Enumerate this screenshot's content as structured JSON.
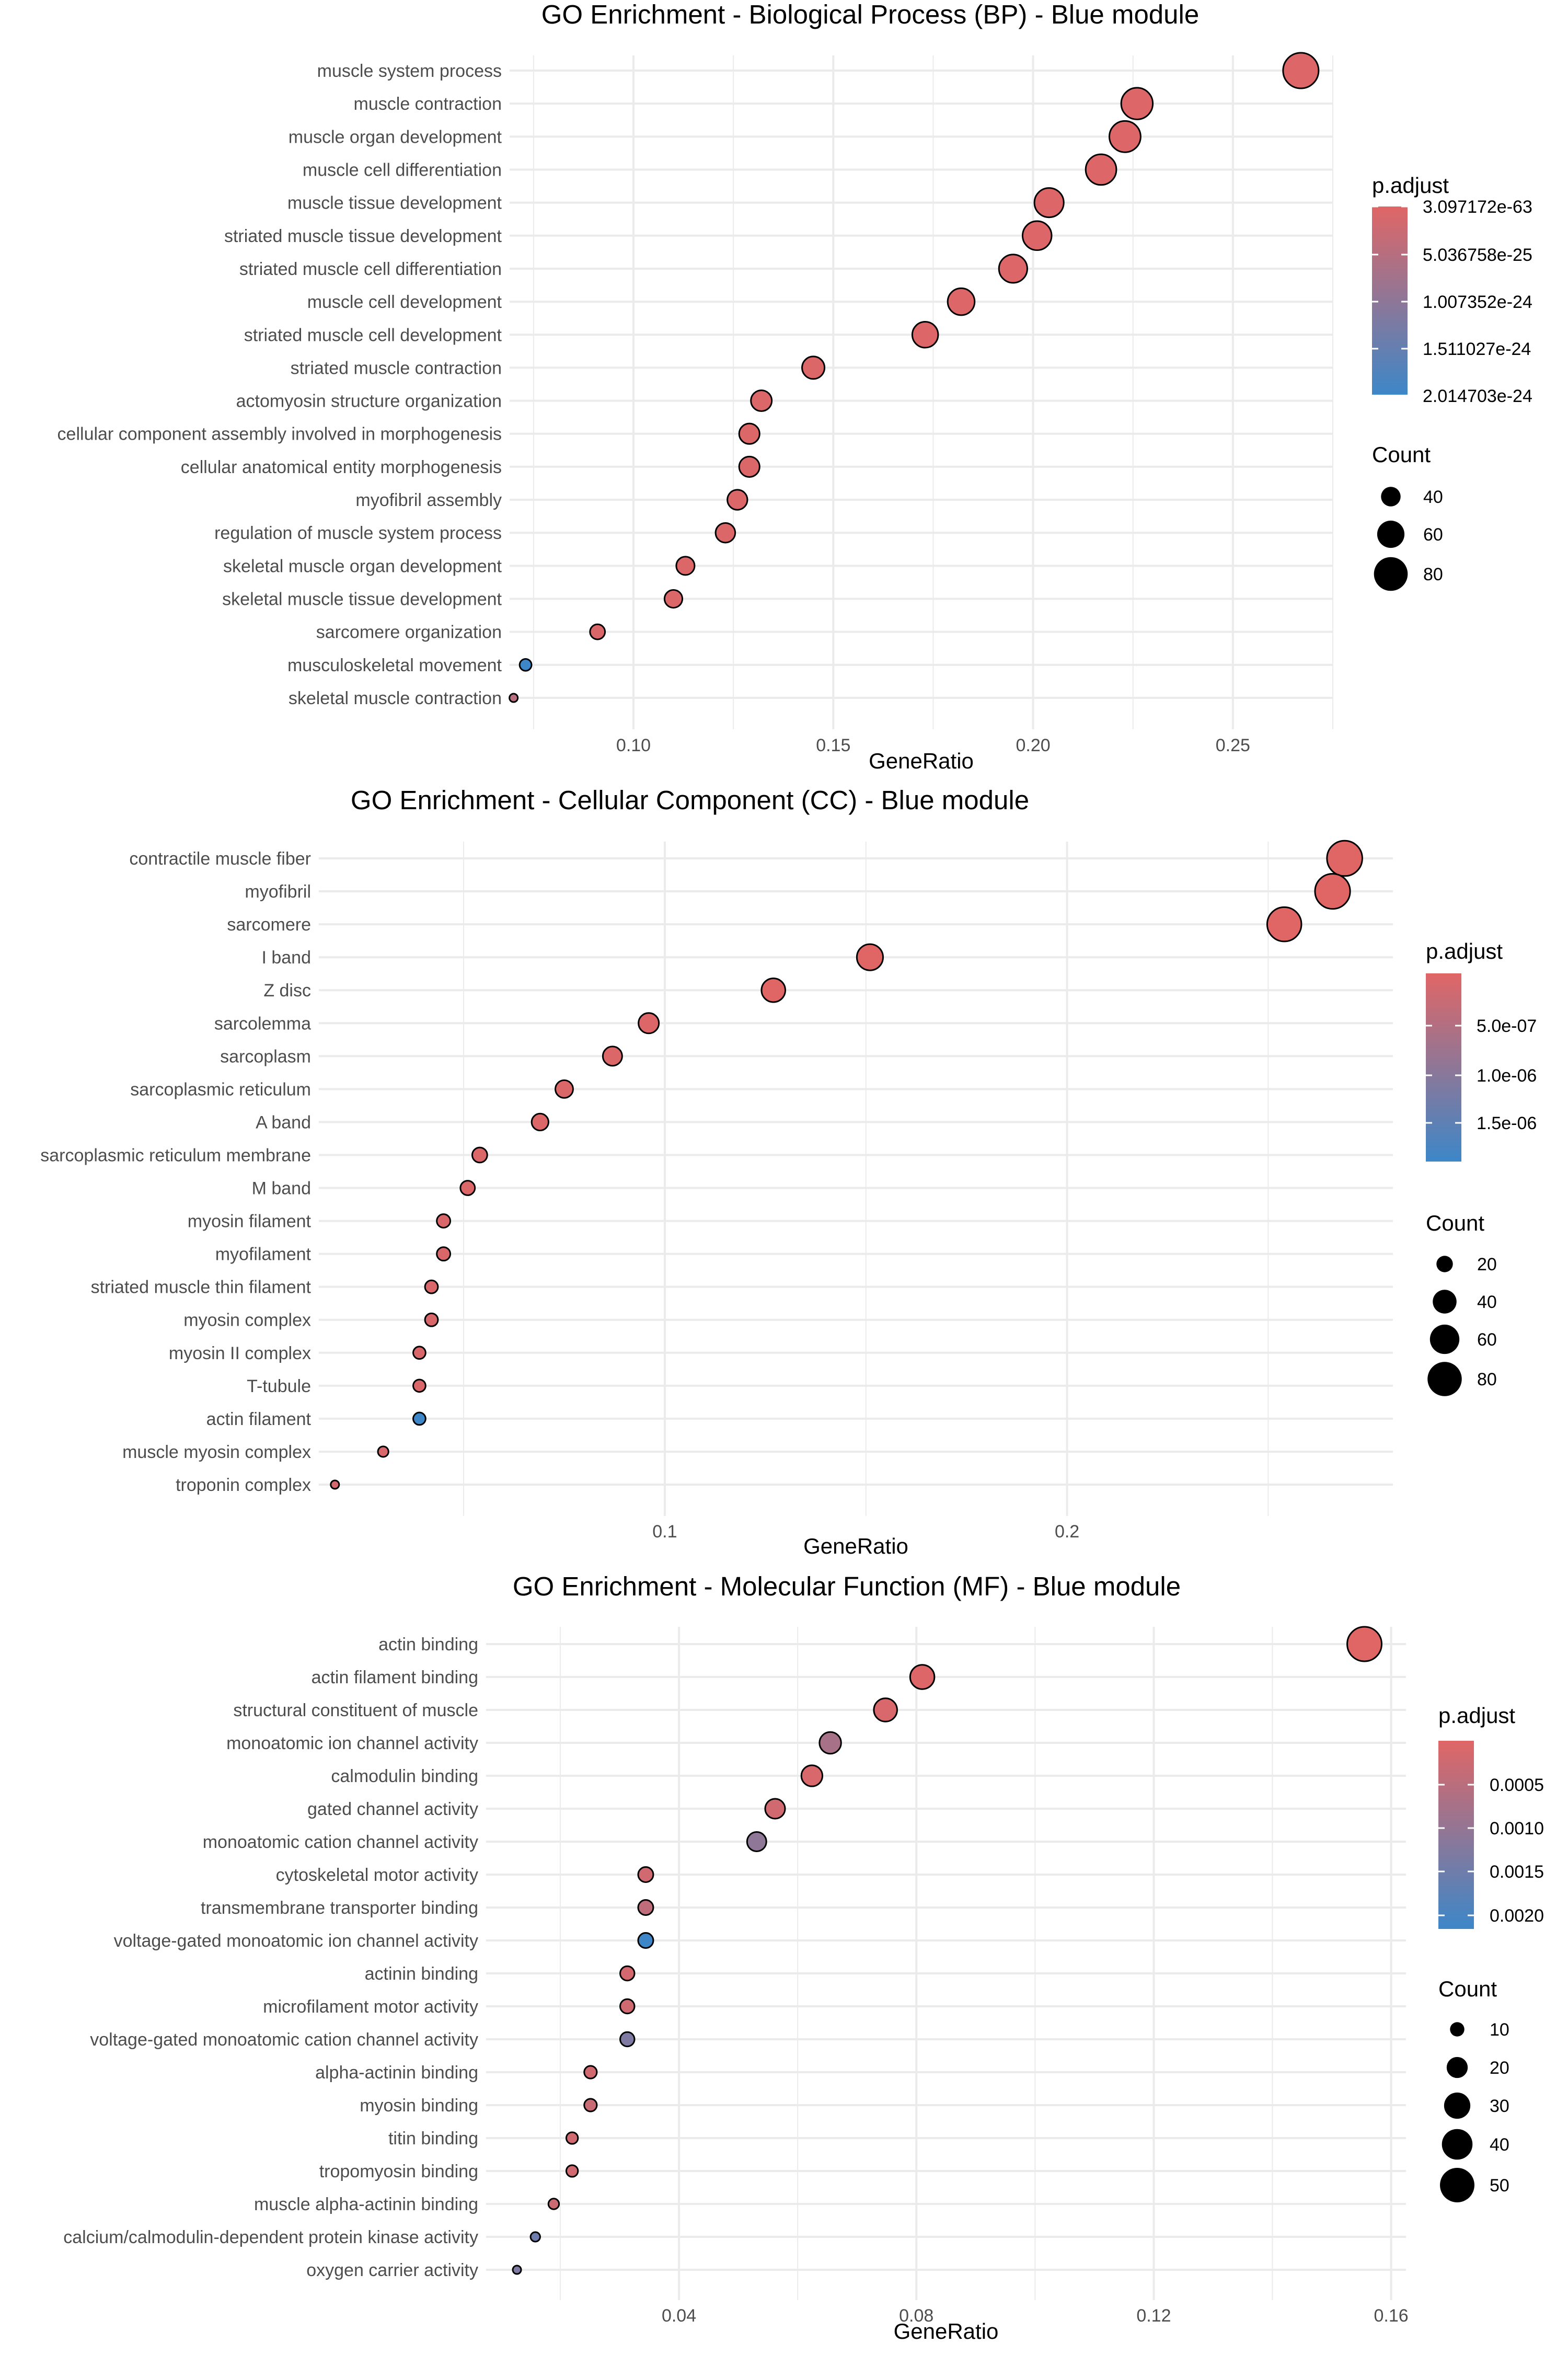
{
  "chart_data": [
    {
      "type": "scatter",
      "title": "GO Enrichment - Biological Process (BP) - Blue module",
      "xlabel": "GeneRatio",
      "ylabel": "",
      "xlim": [
        0.069,
        0.275
      ],
      "xticks": [
        0.1,
        0.15,
        0.2,
        0.25
      ],
      "xtick_labels": [
        "0.10",
        "0.15",
        "0.20",
        "0.25"
      ],
      "grid": true,
      "legend_position": "right",
      "color_legend": {
        "title": "p.adjust",
        "low_color": "#e06666",
        "high_color": "#3d87c8",
        "labels": [
          "3.097172e-63",
          "5.036758e-25",
          "1.007352e-24",
          "1.511027e-24",
          "2.014703e-24"
        ]
      },
      "size_legend": {
        "title": "Count",
        "values": [
          40,
          60,
          80
        ],
        "labels": [
          "40",
          "60",
          "80"
        ]
      },
      "count_range": [
        18,
        86
      ],
      "categories": [
        "muscle system process",
        "muscle contraction",
        "muscle organ development",
        "muscle cell differentiation",
        "muscle tissue development",
        "striated muscle tissue development",
        "striated muscle cell differentiation",
        "muscle cell development",
        "striated muscle cell development",
        "striated muscle contraction",
        "actomyosin structure organization",
        "cellular component assembly involved in morphogenesis",
        "cellular anatomical entity morphogenesis",
        "myofibril assembly",
        "regulation of muscle system process",
        "skeletal muscle organ development",
        "skeletal muscle tissue development",
        "sarcomere organization",
        "musculoskeletal movement",
        "skeletal muscle contraction"
      ],
      "x": [
        0.267,
        0.226,
        0.223,
        0.217,
        0.204,
        0.201,
        0.195,
        0.182,
        0.173,
        0.145,
        0.132,
        0.129,
        0.129,
        0.126,
        0.123,
        0.113,
        0.11,
        0.091,
        0.073,
        0.07
      ],
      "count": [
        86,
        73,
        72,
        70,
        66,
        65,
        63,
        59,
        56,
        47,
        43,
        42,
        42,
        41,
        40,
        37,
        36,
        30,
        24,
        18
      ],
      "color_level": [
        0.02,
        0.02,
        0.02,
        0.02,
        0.02,
        0.02,
        0.02,
        0.02,
        0.02,
        0.03,
        0.03,
        0.03,
        0.03,
        0.03,
        0.03,
        0.03,
        0.03,
        0.04,
        1.0,
        0.25
      ]
    },
    {
      "type": "scatter",
      "title": "GO Enrichment - Cellular Component (CC) - Blue module",
      "xlabel": "GeneRatio",
      "ylabel": "",
      "xlim": [
        0.014,
        0.281
      ],
      "xticks": [
        0.1,
        0.2
      ],
      "xtick_labels": [
        "0.1",
        "0.2"
      ],
      "grid": true,
      "legend_position": "right",
      "color_legend": {
        "title": "p.adjust",
        "low_color": "#e06666",
        "high_color": "#3d87c8",
        "labels": [
          "5.0e-07",
          "1.0e-06",
          "1.5e-06"
        ]
      },
      "size_legend": {
        "title": "Count",
        "values": [
          20,
          40,
          60,
          80
        ],
        "labels": [
          "20",
          "40",
          "60",
          "80"
        ]
      },
      "count_range": [
        6,
        86
      ],
      "categories": [
        "contractile muscle fiber",
        "myofibril",
        "sarcomere",
        "I band",
        "Z disc",
        "sarcolemma",
        "sarcoplasm",
        "sarcoplasmic reticulum",
        "A band",
        "sarcoplasmic reticulum membrane",
        "M band",
        "myosin filament",
        "myofilament",
        "striated muscle thin filament",
        "myosin complex",
        "myosin II complex",
        "T-tubule",
        "actin filament",
        "muscle myosin complex",
        "troponin complex"
      ],
      "x": [
        0.269,
        0.266,
        0.254,
        0.151,
        0.127,
        0.096,
        0.087,
        0.075,
        0.069,
        0.054,
        0.051,
        0.045,
        0.045,
        0.042,
        0.042,
        0.039,
        0.039,
        0.039,
        0.03,
        0.018
      ],
      "count": [
        85,
        84,
        80,
        48,
        40,
        30,
        27,
        23,
        21,
        17,
        16,
        14,
        14,
        13,
        13,
        12,
        12,
        12,
        9,
        6
      ],
      "color_level": [
        0.0,
        0.0,
        0.0,
        0.0,
        0.0,
        0.02,
        0.03,
        0.03,
        0.03,
        0.03,
        0.03,
        0.04,
        0.04,
        0.04,
        0.04,
        0.04,
        0.04,
        1.0,
        0.05,
        0.08
      ]
    },
    {
      "type": "scatter",
      "title": "GO Enrichment - Molecular Function (MF) - Blue module",
      "xlabel": "GeneRatio",
      "ylabel": "",
      "xlim": [
        0.0075,
        0.1625
      ],
      "xticks": [
        0.04,
        0.08,
        0.12,
        0.16
      ],
      "xtick_labels": [
        "0.04",
        "0.08",
        "0.12",
        "0.16"
      ],
      "grid": true,
      "legend_position": "right",
      "color_legend": {
        "title": "p.adjust",
        "low_color": "#e06666",
        "high_color": "#3d87c8",
        "labels": [
          "0.0005",
          "0.0010",
          "0.0015",
          "0.0020"
        ]
      },
      "size_legend": {
        "title": "Count",
        "values": [
          10,
          20,
          30,
          40,
          50
        ],
        "labels": [
          "10",
          "20",
          "30",
          "40",
          "50"
        ]
      },
      "count_range": [
        4,
        53
      ],
      "categories": [
        "actin binding",
        "actin filament binding",
        "structural constituent of muscle",
        "monoatomic ion channel activity",
        "calmodulin binding",
        "gated channel activity",
        "monoatomic cation channel activity",
        "cytoskeletal motor activity",
        "transmembrane transporter binding",
        "voltage-gated monoatomic ion channel activity",
        "actinin binding",
        "microfilament motor activity",
        "voltage-gated monoatomic cation channel activity",
        "alpha-actinin binding",
        "myosin binding",
        "titin binding",
        "tropomyosin binding",
        "muscle alpha-actinin binding",
        "calcium/calmodulin-dependent protein kinase activity",
        "oxygen carrier activity"
      ],
      "x": [
        0.1555,
        0.081,
        0.0748,
        0.0655,
        0.0624,
        0.0562,
        0.0531,
        0.0344,
        0.0344,
        0.0344,
        0.0313,
        0.0313,
        0.0313,
        0.0251,
        0.0251,
        0.022,
        0.022,
        0.0189,
        0.0158,
        0.0127
      ],
      "count": [
        50,
        26,
        24,
        21,
        20,
        18,
        17,
        11,
        11,
        11,
        10,
        10,
        10,
        8,
        8,
        7,
        7,
        6,
        5,
        4
      ],
      "color_level": [
        0.0,
        0.02,
        0.05,
        0.35,
        0.05,
        0.1,
        0.5,
        0.1,
        0.2,
        1.0,
        0.08,
        0.1,
        0.6,
        0.1,
        0.15,
        0.1,
        0.1,
        0.12,
        0.7,
        0.6
      ]
    }
  ]
}
